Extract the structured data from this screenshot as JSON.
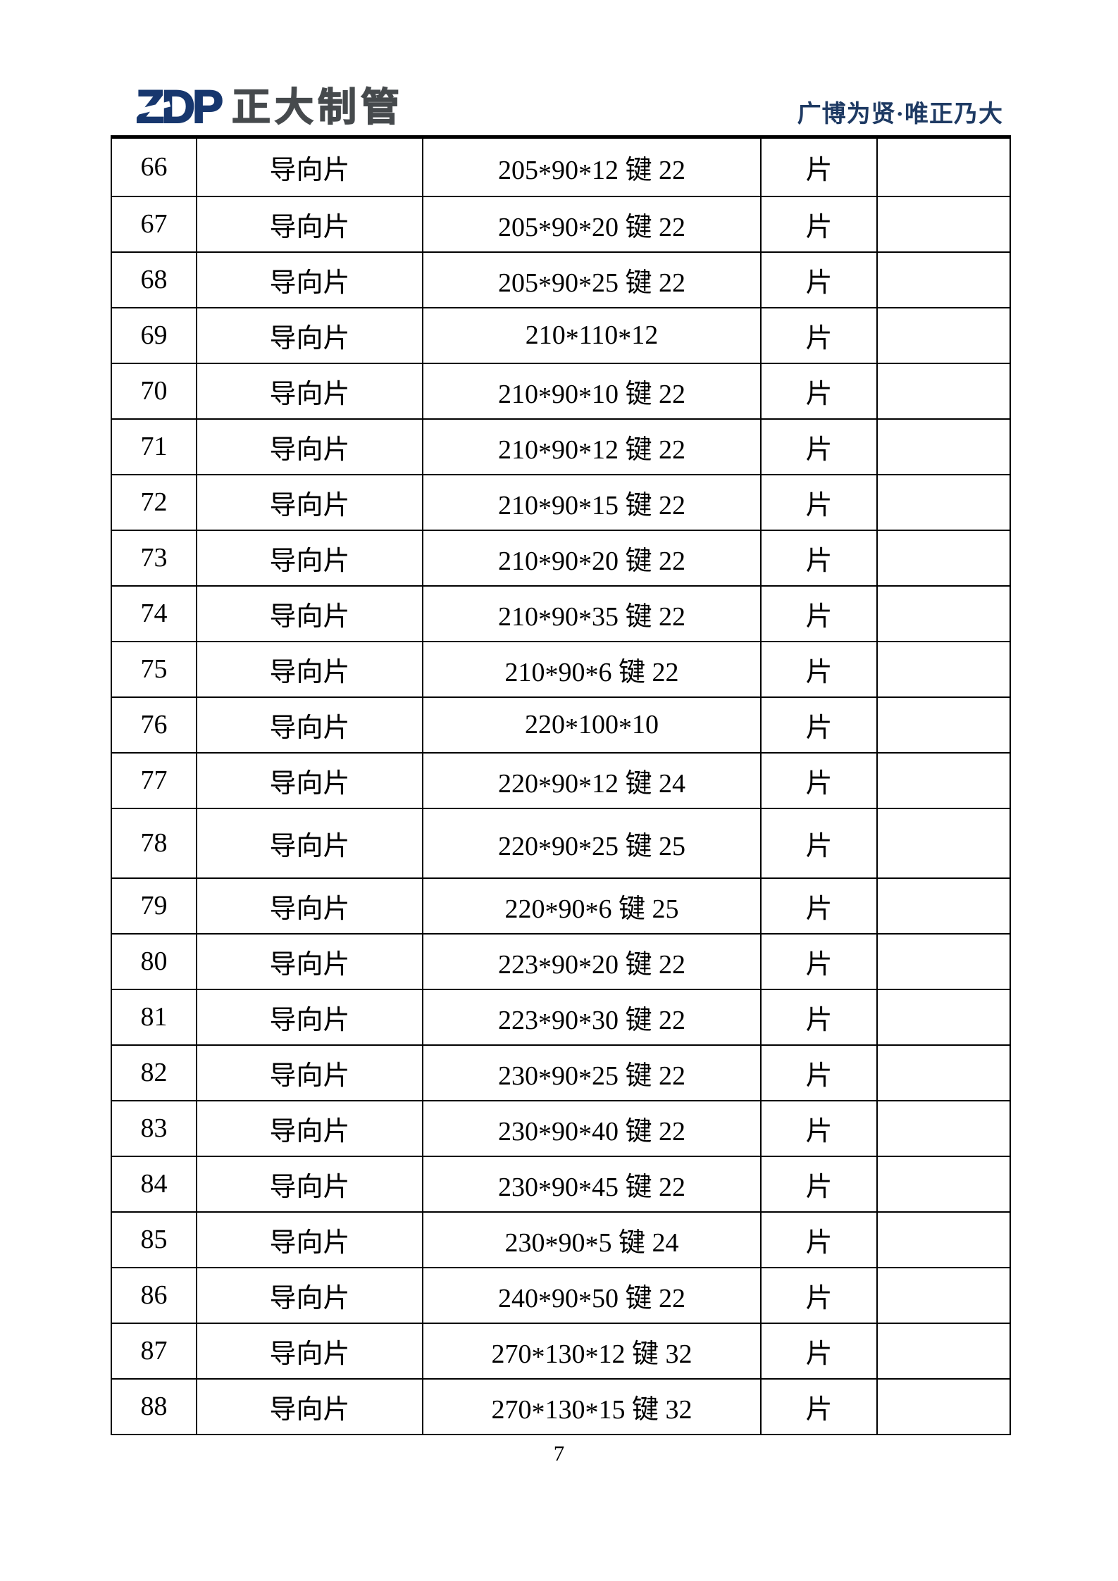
{
  "page": {
    "background": "#ffffff"
  },
  "header": {
    "logo": {
      "acronym": "ZDP",
      "acronym_color": "#17376e",
      "company_name": "正大制管",
      "company_color": "#464a4d"
    },
    "slogan": {
      "text": "广博为贤·唯正乃大",
      "color": "#1e3a63"
    }
  },
  "table": {
    "border_color": "#000000",
    "rows": [
      {
        "no": "66",
        "name": "导向片",
        "spec": "205*90*12 键 22",
        "unit": "片",
        "note": ""
      },
      {
        "no": "67",
        "name": "导向片",
        "spec": "205*90*20 键 22",
        "unit": "片",
        "note": ""
      },
      {
        "no": "68",
        "name": "导向片",
        "spec": "205*90*25 键 22",
        "unit": "片",
        "note": ""
      },
      {
        "no": "69",
        "name": "导向片",
        "spec": "210*110*12",
        "unit": "片",
        "note": ""
      },
      {
        "no": "70",
        "name": "导向片",
        "spec": "210*90*10 键 22",
        "unit": "片",
        "note": ""
      },
      {
        "no": "71",
        "name": "导向片",
        "spec": "210*90*12 键 22",
        "unit": "片",
        "note": ""
      },
      {
        "no": "72",
        "name": "导向片",
        "spec": "210*90*15 键 22",
        "unit": "片",
        "note": ""
      },
      {
        "no": "73",
        "name": "导向片",
        "spec": "210*90*20 键 22",
        "unit": "片",
        "note": ""
      },
      {
        "no": "74",
        "name": "导向片",
        "spec": "210*90*35 键 22",
        "unit": "片",
        "note": ""
      },
      {
        "no": "75",
        "name": "导向片",
        "spec": "210*90*6 键 22",
        "unit": "片",
        "note": ""
      },
      {
        "no": "76",
        "name": "导向片",
        "spec": "220*100*10",
        "unit": "片",
        "note": ""
      },
      {
        "no": "77",
        "name": "导向片",
        "spec": "220*90*12 键 24",
        "unit": "片",
        "note": ""
      },
      {
        "no": "78",
        "name": "导向片",
        "spec": "220*90*25 键 25",
        "unit": "片",
        "note": ""
      },
      {
        "no": "79",
        "name": "导向片",
        "spec": "220*90*6 键 25",
        "unit": "片",
        "note": ""
      },
      {
        "no": "80",
        "name": "导向片",
        "spec": "223*90*20 键 22",
        "unit": "片",
        "note": ""
      },
      {
        "no": "81",
        "name": "导向片",
        "spec": "223*90*30 键 22",
        "unit": "片",
        "note": ""
      },
      {
        "no": "82",
        "name": "导向片",
        "spec": "230*90*25 键 22",
        "unit": "片",
        "note": ""
      },
      {
        "no": "83",
        "name": "导向片",
        "spec": "230*90*40 键 22",
        "unit": "片",
        "note": ""
      },
      {
        "no": "84",
        "name": "导向片",
        "spec": "230*90*45 键 22",
        "unit": "片",
        "note": ""
      },
      {
        "no": "85",
        "name": "导向片",
        "spec": "230*90*5 键 24",
        "unit": "片",
        "note": ""
      },
      {
        "no": "86",
        "name": "导向片",
        "spec": "240*90*50 键 22",
        "unit": "片",
        "note": ""
      },
      {
        "no": "87",
        "name": "导向片",
        "spec": "270*130*12 键 32",
        "unit": "片",
        "note": ""
      },
      {
        "no": "88",
        "name": "导向片",
        "spec": "270*130*15 键 32",
        "unit": "片",
        "note": ""
      }
    ]
  },
  "footer": {
    "page_number": "7"
  }
}
